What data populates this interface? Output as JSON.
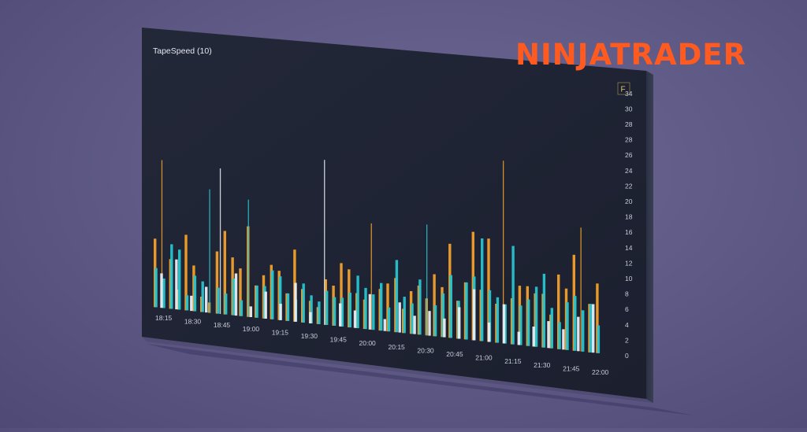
{
  "brand": {
    "name": "NINJATRADER",
    "color": "#ff5a1f"
  },
  "chart_data": {
    "type": "bar",
    "title": "TapeSpeed (10)",
    "y_axis_position": "right",
    "grid": false,
    "panel_button": "F",
    "ylim": [
      0,
      35
    ],
    "y_ticks": [
      "0",
      "2",
      "4",
      "6",
      "8",
      "10",
      "12",
      "14",
      "16",
      "18",
      "20",
      "22",
      "24",
      "26",
      "28",
      "28",
      "30",
      "34"
    ],
    "x_ticks": [
      "18:15",
      "18:30",
      "18:45",
      "19:00",
      "19:15",
      "19:30",
      "19:45",
      "20:00",
      "20:15",
      "20:30",
      "20:45",
      "21:00",
      "21:15",
      "21:30",
      "21:45",
      "22:00"
    ],
    "colors": {
      "orange": "#f2a02b",
      "cyan": "#27c4cf",
      "white": "#e9edf4",
      "background": "#1e2333"
    },
    "series": [
      {
        "color": "orange",
        "values": [
          14,
          30,
          10,
          4,
          15,
          9,
          3,
          2,
          12,
          16,
          11,
          9,
          17,
          6,
          8,
          10,
          9,
          5,
          13,
          6,
          4,
          3,
          8,
          7,
          11,
          10,
          6,
          5,
          18,
          7,
          8,
          9,
          4,
          7,
          8,
          6,
          10,
          8,
          15,
          6,
          9,
          17,
          8,
          16,
          6,
          28,
          7,
          9,
          9,
          8,
          8,
          5,
          11,
          9,
          14,
          18,
          7,
          10
        ]
      },
      {
        "color": "cyan",
        "values": [
          8,
          6,
          13,
          12,
          3,
          7,
          6,
          24,
          5,
          4,
          7,
          3,
          22,
          6,
          6,
          9,
          8,
          5,
          4,
          7,
          5,
          4,
          6,
          5,
          5,
          6,
          9,
          7,
          6,
          8,
          4,
          12,
          6,
          5,
          9,
          18,
          5,
          7,
          10,
          6,
          9,
          10,
          16,
          8,
          7,
          6,
          15,
          6,
          7,
          9,
          11,
          6,
          4,
          7,
          8,
          6,
          7,
          4
        ]
      },
      {
        "color": "white",
        "values": [
          7,
          10,
          3,
          5,
          28,
          8,
          2,
          5,
          3,
          7,
          2,
          29,
          4,
          3,
          6,
          2,
          5,
          3,
          4,
          3,
          5,
          8,
          3,
          6,
          2,
          3,
          4,
          3,
          5,
          7
        ]
      }
    ]
  }
}
